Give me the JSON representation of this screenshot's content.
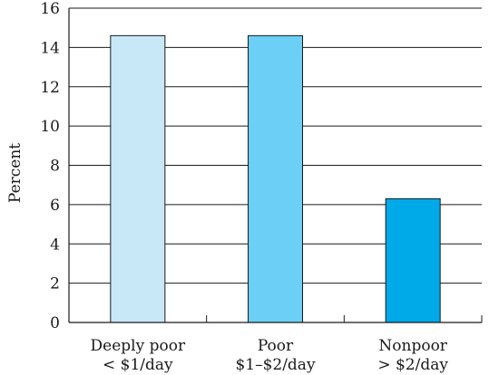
{
  "chart_data": {
    "type": "bar",
    "ylabel": "Percent",
    "xlabel": "",
    "title": "",
    "ylim": [
      0,
      16
    ],
    "yticks": [
      0,
      2,
      4,
      6,
      8,
      10,
      12,
      14,
      16
    ],
    "grid": "horizontal",
    "categories": [
      {
        "line1": "Deeply poor",
        "line2": "< $1/day"
      },
      {
        "line1": "Poor",
        "line2": "$1–$2/day"
      },
      {
        "line1": "Nonpoor",
        "line2": "> $2/day"
      }
    ],
    "values": [
      14.6,
      14.6,
      6.3
    ],
    "bar_colors": [
      "#c8e8f8",
      "#6ccff5",
      "#00a9e8"
    ]
  }
}
